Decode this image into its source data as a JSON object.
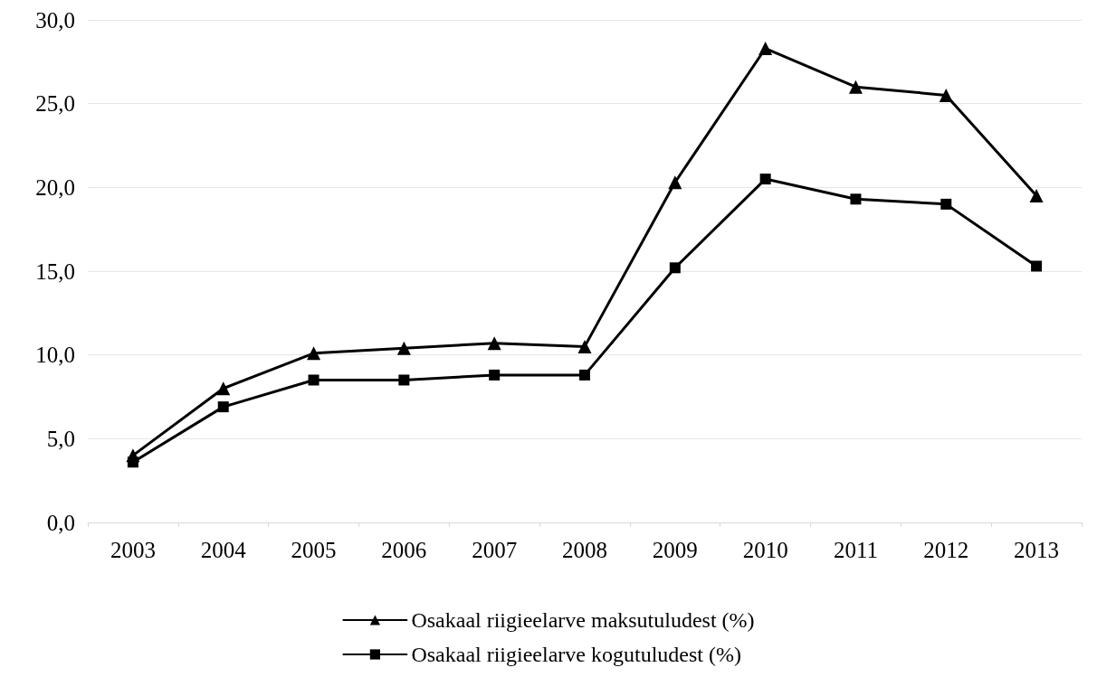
{
  "chart_data": {
    "type": "line",
    "categories": [
      "2003",
      "2004",
      "2005",
      "2006",
      "2007",
      "2008",
      "2009",
      "2010",
      "2011",
      "2012",
      "2013"
    ],
    "series": [
      {
        "name": "Osakaal riigieelarve maksutuludest (%)",
        "color": "#000000",
        "marker": "triangle",
        "values": [
          4.0,
          8.0,
          10.1,
          10.4,
          10.7,
          10.5,
          20.3,
          28.3,
          26.0,
          25.5,
          19.5
        ]
      },
      {
        "name": "Osakaal riigieelarve kogutuludest (%)",
        "color": "#000000",
        "marker": "square",
        "values": [
          3.6,
          6.9,
          8.5,
          8.5,
          8.8,
          8.8,
          15.2,
          20.5,
          19.3,
          19.0,
          15.3
        ]
      }
    ],
    "ylim": [
      0,
      30
    ],
    "yticks": [
      {
        "value": 0,
        "label": "0,0"
      },
      {
        "value": 5,
        "label": "5,0"
      },
      {
        "value": 10,
        "label": "10,0"
      },
      {
        "value": 15,
        "label": "15,0"
      },
      {
        "value": 20,
        "label": "20,0"
      },
      {
        "value": 25,
        "label": "25,0"
      },
      {
        "value": 30,
        "label": "30,0"
      }
    ],
    "grid": "y",
    "legend": "bottom",
    "line_style": "solid"
  }
}
